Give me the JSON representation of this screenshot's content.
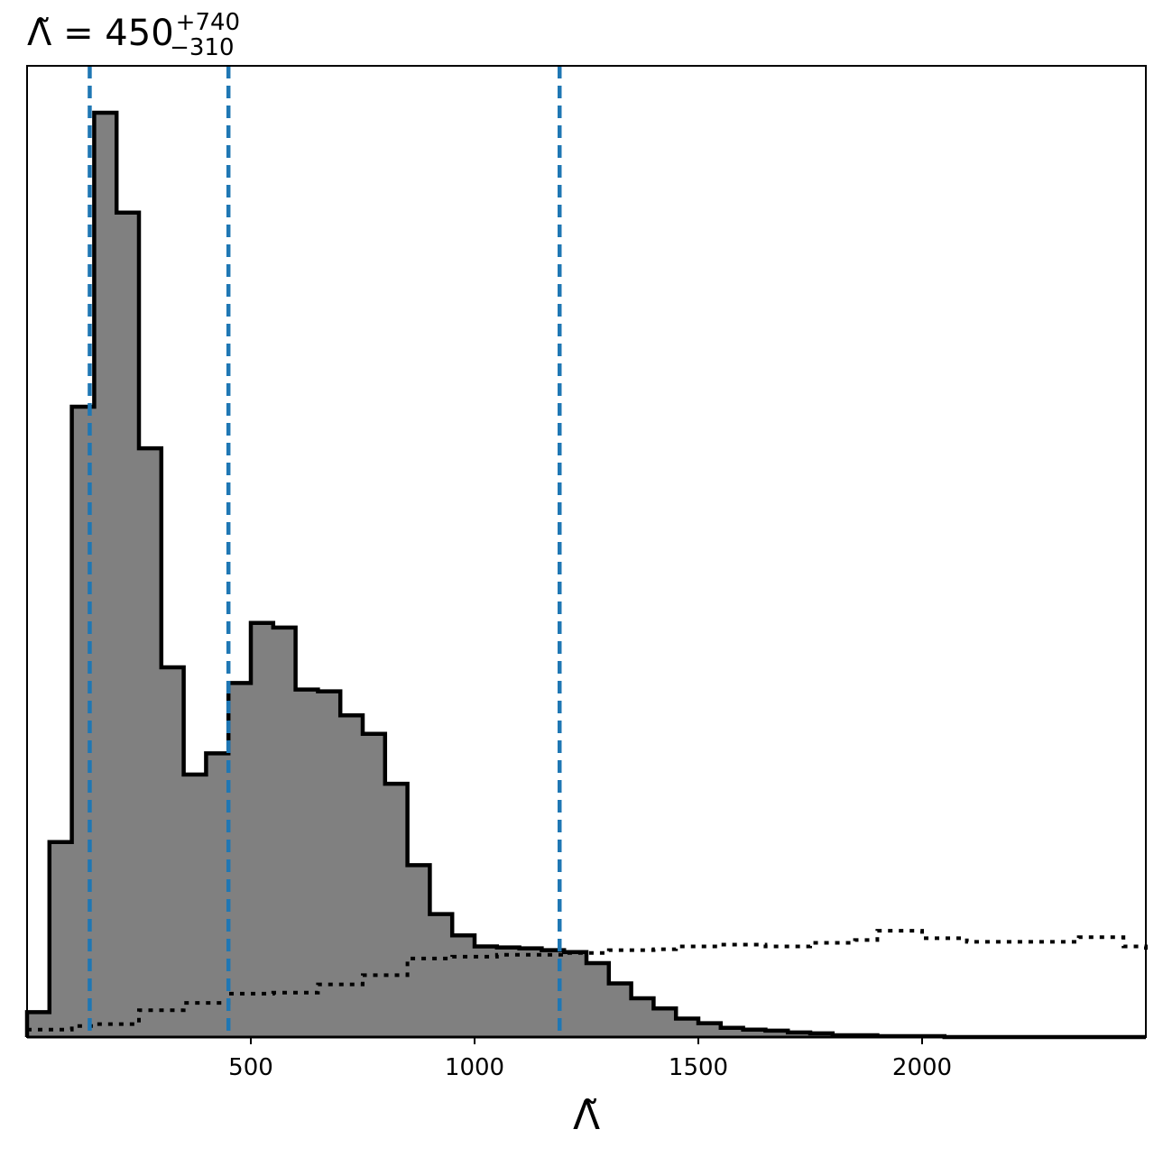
{
  "chart_data": {
    "type": "histogram",
    "title": {
      "text": "Λ̃ = 450",
      "sup": "+740",
      "sub": "−310"
    },
    "xlabel": "Λ̃",
    "ylabel": "",
    "xlim": [
      0,
      2500
    ],
    "ylim": [
      0,
      1.0
    ],
    "xticks": [
      500,
      1000,
      1500,
      2000
    ],
    "grid": false,
    "colors": {
      "fill": "#808080",
      "edge": "#000000",
      "quantile": "#1f77b4",
      "prior": "#000000"
    },
    "bin_edges": [
      0,
      50,
      100,
      150,
      200,
      250,
      300,
      350,
      400,
      450,
      500,
      550,
      600,
      650,
      700,
      750,
      800,
      850,
      900,
      950,
      1000,
      1050,
      1100,
      1150,
      1200,
      1250,
      1300,
      1350,
      1400,
      1450,
      1500,
      1550,
      1600,
      1650,
      1700,
      1750,
      1800,
      1850,
      1900,
      1950,
      2000,
      2050,
      2100,
      2150,
      2200,
      2250,
      2300,
      2350,
      2400,
      2450,
      2500
    ],
    "series": [
      {
        "style": "filled-step",
        "values": [
          0.027,
          0.211,
          0.682,
          1.0,
          0.892,
          0.637,
          0.4,
          0.284,
          0.307,
          0.383,
          0.448,
          0.443,
          0.376,
          0.374,
          0.348,
          0.328,
          0.274,
          0.186,
          0.133,
          0.11,
          0.098,
          0.097,
          0.096,
          0.094,
          0.092,
          0.08,
          0.058,
          0.042,
          0.031,
          0.02,
          0.015,
          0.01,
          0.008,
          0.007,
          0.005,
          0.004,
          0.002,
          0.002,
          0.001,
          0.001,
          0.001,
          0.0,
          0.0,
          0.0,
          0.0,
          0.0,
          0.0,
          0.0,
          0.0,
          0.0
        ]
      },
      {
        "style": "dotted-step",
        "values": [
          0.008,
          0.008,
          0.012,
          0.014,
          0.014,
          0.029,
          0.029,
          0.037,
          0.037,
          0.047,
          0.047,
          0.048,
          0.048,
          0.057,
          0.057,
          0.067,
          0.067,
          0.085,
          0.085,
          0.087,
          0.087,
          0.089,
          0.089,
          0.089,
          0.091,
          0.091,
          0.094,
          0.094,
          0.095,
          0.098,
          0.098,
          0.1,
          0.1,
          0.098,
          0.098,
          0.102,
          0.102,
          0.105,
          0.115,
          0.115,
          0.107,
          0.107,
          0.103,
          0.103,
          0.103,
          0.103,
          0.103,
          0.108,
          0.108,
          0.098
        ]
      }
    ],
    "quantiles": [
      140,
      450,
      1190
    ]
  }
}
